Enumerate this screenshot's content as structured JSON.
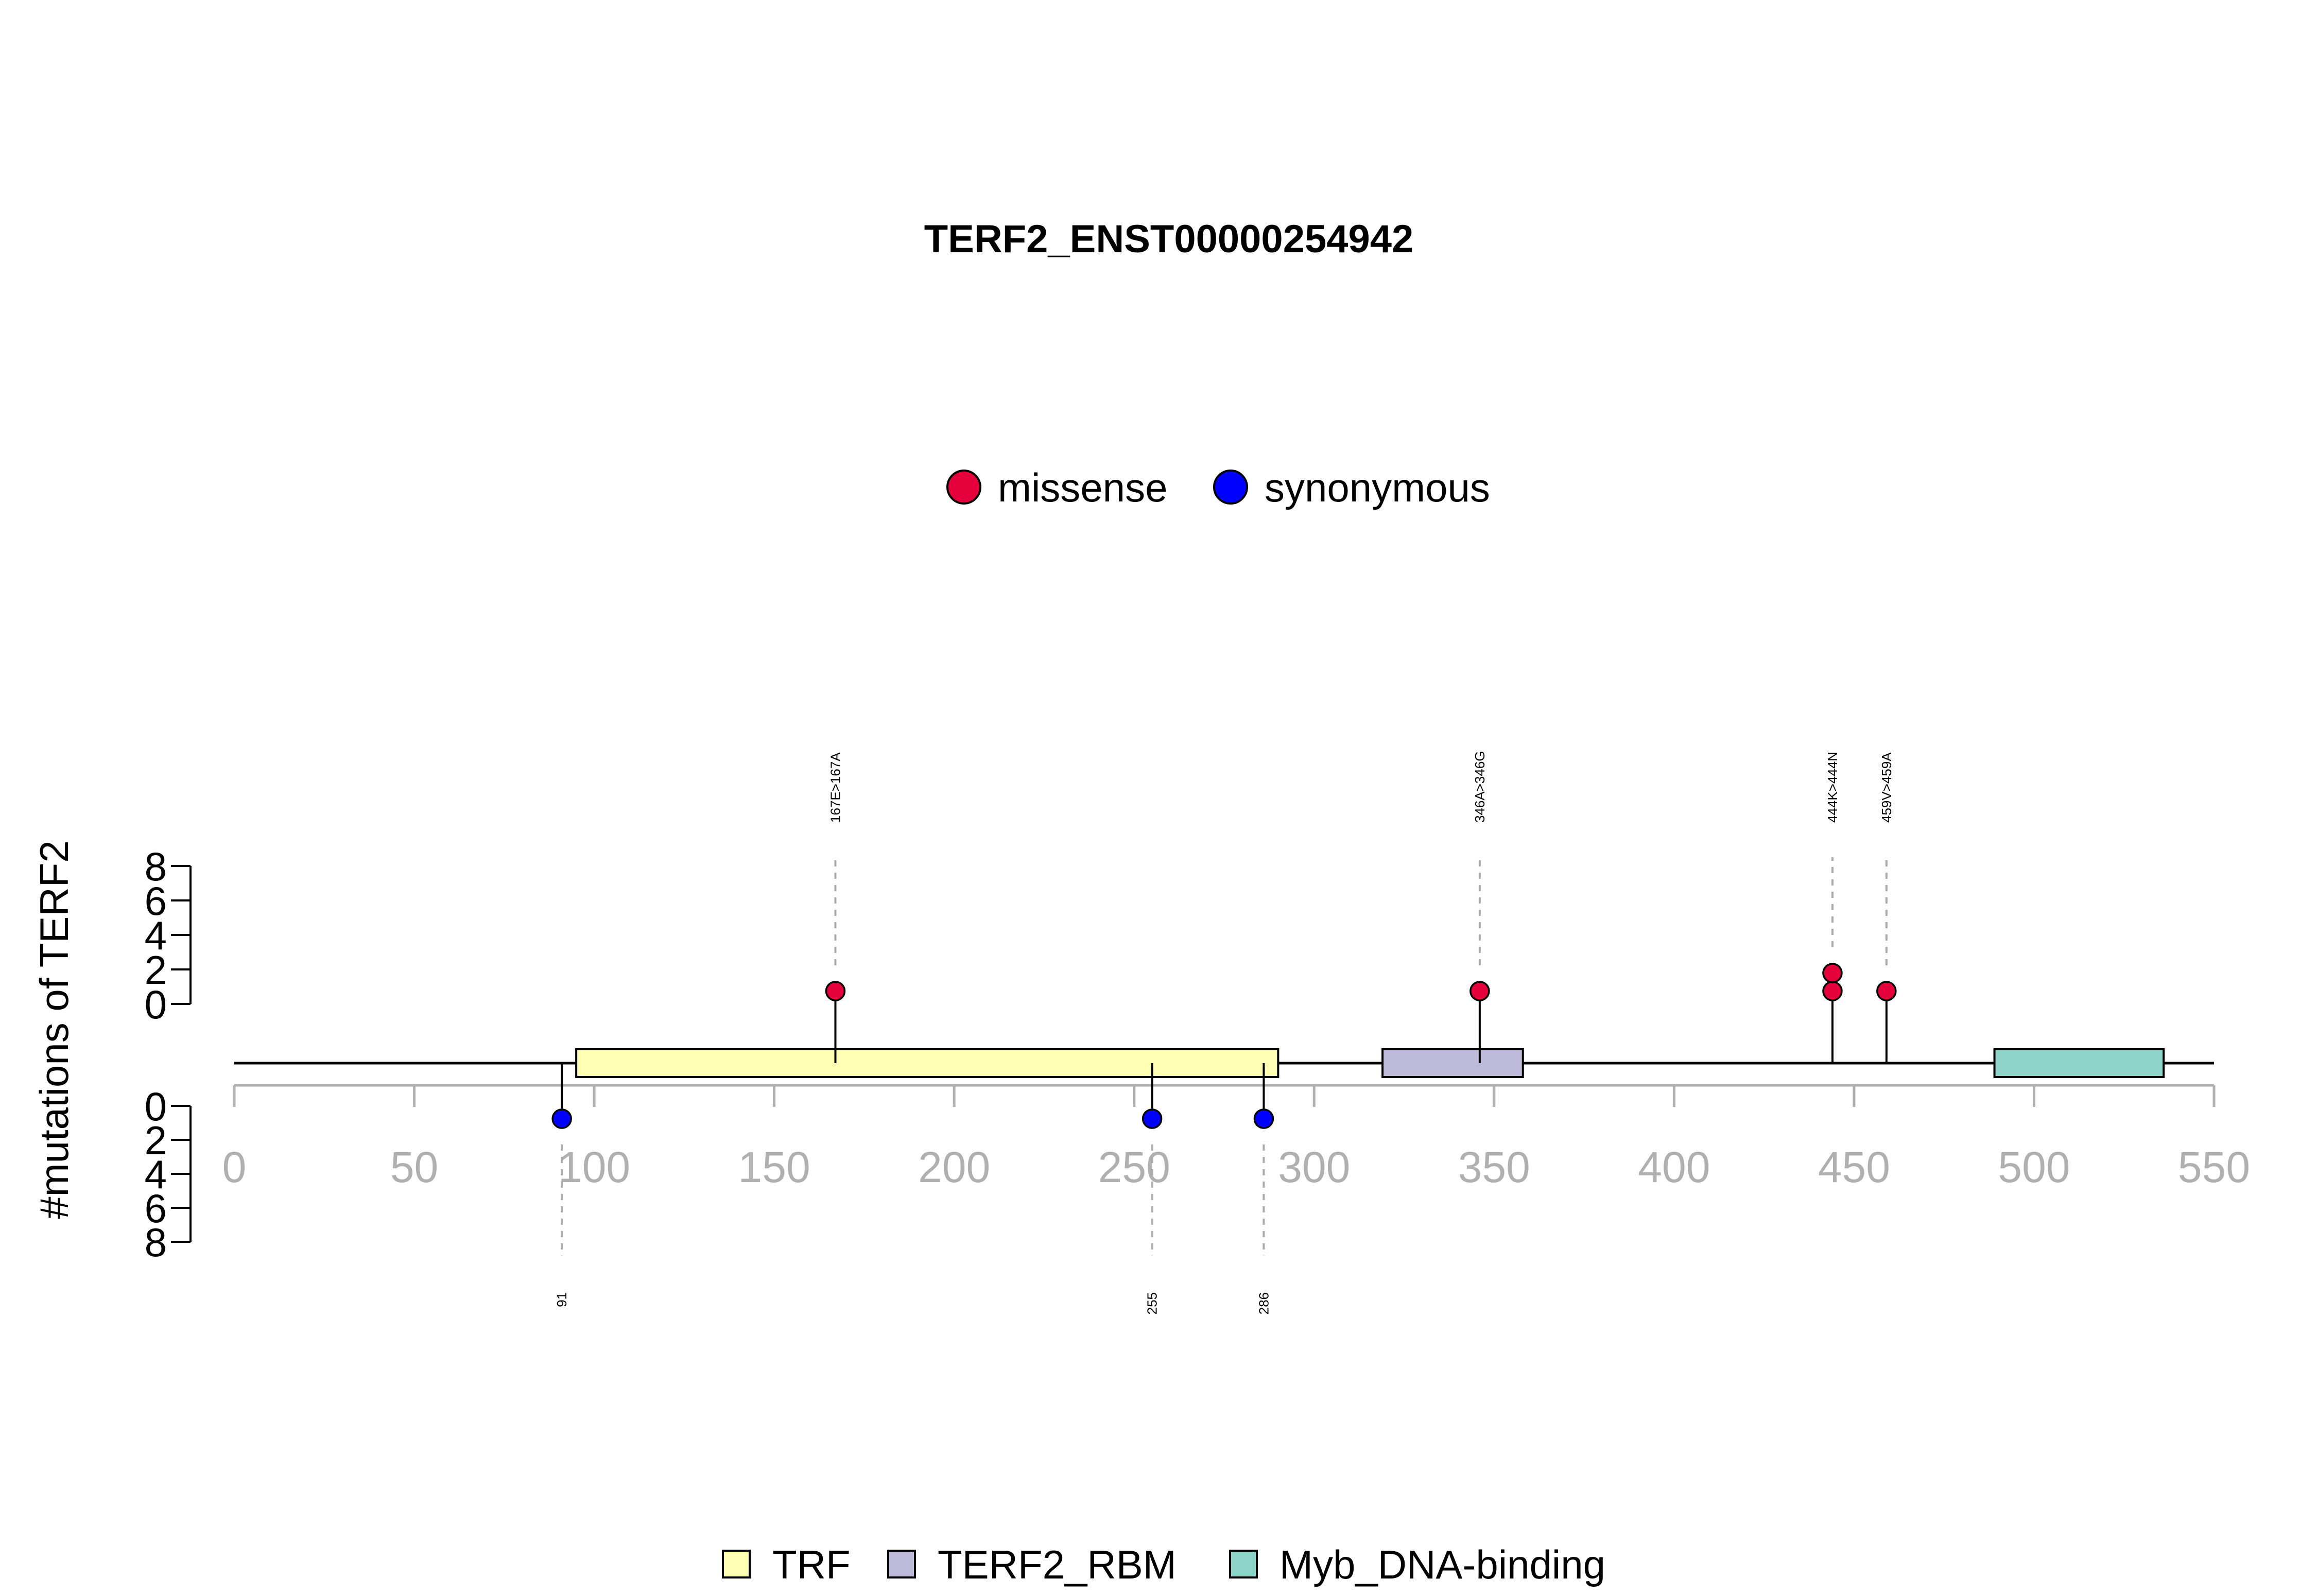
{
  "chart_data": {
    "type": "lollipop",
    "title": "TERF2_ENST00000254942",
    "ylabel": "#mutations of TERF2",
    "protein_length": 550,
    "xlim": [
      0,
      550
    ],
    "x_ticks": [
      0,
      50,
      100,
      150,
      200,
      250,
      300,
      350,
      400,
      450,
      500,
      550
    ],
    "y_ticks_upper": [
      0,
      2,
      4,
      6,
      8
    ],
    "y_ticks_lower": [
      0,
      2,
      4,
      6,
      8
    ],
    "mutation_types": [
      {
        "name": "missense",
        "color": "#e4003a"
      },
      {
        "name": "synonymous",
        "color": "#0000ff"
      }
    ],
    "mutations_upper": [
      {
        "position": 167,
        "count": 1,
        "type": "missense",
        "label": "167E>167A"
      },
      {
        "position": 346,
        "count": 1,
        "type": "missense",
        "label": "346A>346G"
      },
      {
        "position": 444,
        "count": 2,
        "type": "missense",
        "label": "444K>444N"
      },
      {
        "position": 459,
        "count": 1,
        "type": "missense",
        "label": "459V>459A"
      }
    ],
    "mutations_lower": [
      {
        "position": 91,
        "count": 1,
        "type": "synonymous",
        "label": "91"
      },
      {
        "position": 255,
        "count": 1,
        "type": "synonymous",
        "label": "255"
      },
      {
        "position": 286,
        "count": 1,
        "type": "synonymous",
        "label": "286"
      }
    ],
    "domains": [
      {
        "name": "TRF",
        "start": 95,
        "end": 290,
        "color": "#ffffb3"
      },
      {
        "name": "TERF2_RBM",
        "start": 319,
        "end": 358,
        "color": "#bebada"
      },
      {
        "name": "Myb_DNA-binding",
        "start": 489,
        "end": 536,
        "color": "#8dd3c7"
      }
    ]
  }
}
